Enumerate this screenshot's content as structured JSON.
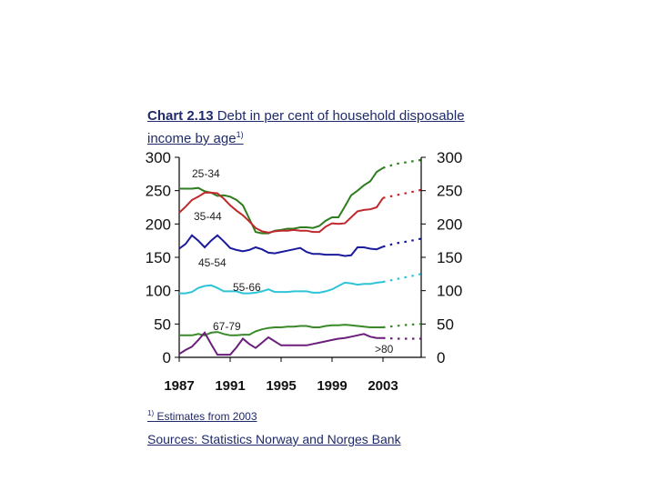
{
  "title": {
    "bold": "Chart 2.13",
    "text": " Debt in per cent of household disposable income by age",
    "footnote_mark": "1)"
  },
  "footnote": {
    "mark": "1)",
    "text": " Estimates from 2003"
  },
  "sources": "Sources: Statistics Norway and Norges Bank",
  "chart_data": {
    "type": "line",
    "ylim": [
      0,
      300
    ],
    "yticks": [
      "0",
      "50",
      "100",
      "150",
      "200",
      "250",
      "300"
    ],
    "xlim": [
      1987,
      2006
    ],
    "xticks": [
      "1987",
      "1991",
      "1995",
      "1999",
      "2003"
    ],
    "estimate_from": 2003,
    "grid": false,
    "series": [
      {
        "name": "25-34",
        "color": "#2e7d1e",
        "x": [
          1987,
          1987.5,
          1988,
          1988.5,
          1989,
          1989.5,
          1990,
          1990.5,
          1991,
          1991.5,
          1992,
          1992.5,
          1993,
          1993.5,
          1994,
          1994.5,
          1995,
          1995.5,
          1996,
          1996.5,
          1997,
          1997.5,
          1998,
          1998.5,
          1999,
          1999.5,
          2000,
          2000.5,
          2001,
          2001.5,
          2002,
          2002.5,
          2003,
          2004,
          2005,
          2006
        ],
        "y": [
          253,
          253,
          253,
          254,
          249,
          247,
          242,
          243,
          241,
          236,
          228,
          208,
          188,
          186,
          186,
          190,
          191,
          193,
          193,
          195,
          195,
          194,
          197,
          205,
          210,
          210,
          226,
          243,
          250,
          258,
          264,
          278,
          284,
          290,
          293,
          296
        ]
      },
      {
        "name": "35-44",
        "color": "#c0282c",
        "x": [
          1987,
          1987.5,
          1988,
          1988.5,
          1989,
          1989.5,
          1990,
          1990.5,
          1991,
          1991.5,
          1992,
          1992.5,
          1993,
          1993.5,
          1994,
          1994.5,
          1995,
          1995.5,
          1996,
          1996.5,
          1997,
          1997.5,
          1998,
          1998.5,
          1999,
          1999.5,
          2000,
          2000.5,
          2001,
          2001.5,
          2002,
          2002.5,
          2003,
          2004,
          2005,
          2006
        ],
        "y": [
          217,
          226,
          236,
          241,
          247,
          247,
          246,
          238,
          228,
          220,
          213,
          204,
          194,
          189,
          187,
          189,
          190,
          190,
          191,
          190,
          190,
          188,
          188,
          196,
          201,
          200,
          201,
          210,
          219,
          221,
          222,
          225,
          239,
          243,
          247,
          251
        ]
      },
      {
        "name": "45-54",
        "color": "#1a1a9c",
        "x": [
          1987,
          1987.5,
          1988,
          1988.5,
          1989,
          1989.5,
          1990,
          1990.5,
          1991,
          1991.5,
          1992,
          1992.5,
          1993,
          1993.5,
          1994,
          1994.5,
          1995,
          1995.5,
          1996,
          1996.5,
          1997,
          1997.5,
          1998,
          1998.5,
          1999,
          1999.5,
          2000,
          2000.5,
          2001,
          2001.5,
          2002,
          2002.5,
          2003,
          2004,
          2005,
          2006
        ],
        "y": [
          163,
          170,
          183,
          175,
          165,
          175,
          183,
          174,
          164,
          161,
          159,
          161,
          165,
          162,
          157,
          156,
          158,
          160,
          162,
          164,
          158,
          155,
          155,
          154,
          154,
          154,
          152,
          153,
          165,
          165,
          163,
          162,
          166,
          171,
          174,
          178
        ]
      },
      {
        "name": "55-66",
        "color": "#2ec4d8",
        "x": [
          1987,
          1987.5,
          1988,
          1988.5,
          1989,
          1989.5,
          1990,
          1990.5,
          1991,
          1991.5,
          1992,
          1992.5,
          1993,
          1993.5,
          1994,
          1994.5,
          1995,
          1995.5,
          1996,
          1996.5,
          1997,
          1997.5,
          1998,
          1998.5,
          1999,
          1999.5,
          2000,
          2000.5,
          2001,
          2001.5,
          2002,
          2002.5,
          2003,
          2004,
          2005,
          2006
        ],
        "y": [
          96,
          96,
          98,
          104,
          107,
          108,
          104,
          99,
          99,
          99,
          96,
          96,
          97,
          99,
          102,
          98,
          98,
          98,
          99,
          99,
          99,
          97,
          97,
          99,
          102,
          107,
          112,
          111,
          109,
          110,
          110,
          112,
          113,
          117,
          121,
          125
        ]
      },
      {
        "name": "67-79",
        "color": "#3a8a2a",
        "x": [
          1987,
          1987.5,
          1988,
          1988.5,
          1989,
          1989.5,
          1990,
          1990.5,
          1991,
          1991.5,
          1992,
          1992.5,
          1993,
          1993.5,
          1994,
          1994.5,
          1995,
          1995.5,
          1996,
          1996.5,
          1997,
          1997.5,
          1998,
          1998.5,
          1999,
          1999.5,
          2000,
          2000.5,
          2001,
          2001.5,
          2002,
          2002.5,
          2003,
          2004,
          2005,
          2006
        ],
        "y": [
          33,
          33,
          33,
          35,
          33,
          37,
          38,
          35,
          33,
          33,
          34,
          34,
          39,
          42,
          44,
          45,
          45,
          46,
          46,
          47,
          47,
          45,
          45,
          47,
          48,
          48,
          49,
          48,
          47,
          46,
          45,
          45,
          45,
          47,
          49,
          50
        ]
      },
      {
        "name": ">80",
        "color": "#6b1f7a",
        "x": [
          1987,
          1987.5,
          1988,
          1988.5,
          1989,
          1989.5,
          1990,
          1990.5,
          1991,
          1991.5,
          1992,
          1992.5,
          1993,
          1993.5,
          1994,
          1994.5,
          1995,
          1995.5,
          1996,
          1996.5,
          1997,
          1997.5,
          1998,
          1998.5,
          1999,
          1999.5,
          2000,
          2000.5,
          2001,
          2001.5,
          2002,
          2002.5,
          2003,
          2004,
          2005,
          2006
        ],
        "y": [
          5,
          11,
          16,
          26,
          37,
          20,
          4,
          4,
          4,
          15,
          28,
          20,
          14,
          22,
          30,
          24,
          18,
          18,
          18,
          18,
          18,
          20,
          22,
          24,
          26,
          28,
          29,
          31,
          33,
          35,
          31,
          29,
          29,
          28,
          28,
          28
        ]
      }
    ]
  }
}
